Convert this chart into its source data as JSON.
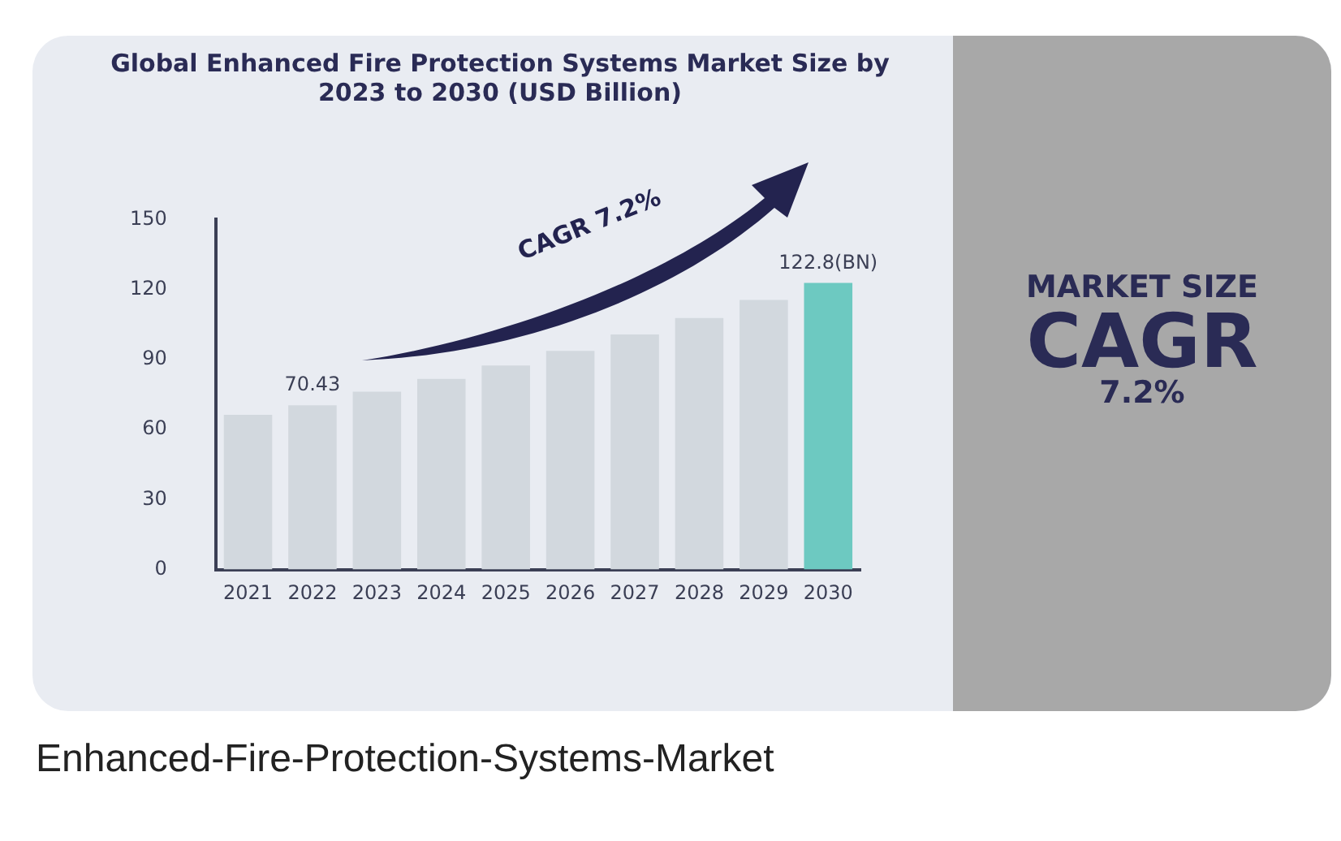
{
  "chart_data": {
    "type": "bar",
    "title": "Global Enhanced Fire Protection Systems Market Size by 2023 to 2030 (USD Billion)",
    "categories": [
      "2021",
      "2022",
      "2023",
      "2024",
      "2025",
      "2026",
      "2027",
      "2028",
      "2029",
      "2030"
    ],
    "values": [
      66.3,
      70.43,
      76.2,
      81.7,
      87.4,
      93.7,
      100.7,
      107.8,
      115.5,
      122.8
    ],
    "colors": [
      "#d2d8de",
      "#d2d8de",
      "#d2d8de",
      "#d2d8de",
      "#d2d8de",
      "#d2d8de",
      "#d2d8de",
      "#d2d8de",
      "#d2d8de",
      "#6dc9c1"
    ],
    "value_labels": [
      null,
      "70.43",
      null,
      null,
      null,
      null,
      null,
      null,
      null,
      "122.8(BN)"
    ],
    "ylim": [
      0,
      150
    ],
    "yticks": [
      0,
      30,
      60,
      90,
      120,
      150
    ],
    "grid": false,
    "legend": false,
    "annotations": [
      "CAGR 7.2%",
      "MARKET SIZE",
      "CAGR",
      "7.2%",
      "Enhanced-Fire-Protection-Systems-Market"
    ]
  }
}
